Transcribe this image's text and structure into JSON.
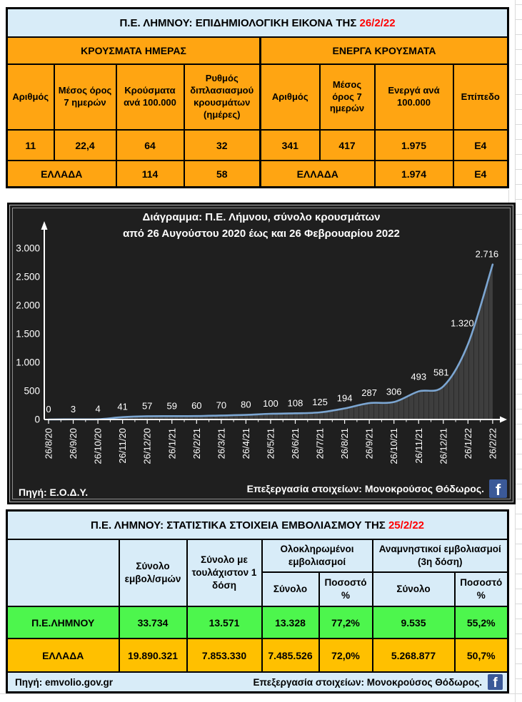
{
  "colors": {
    "orange": "#ffa512",
    "pale_blue": "#d8ecf8",
    "green_row": "#4df64d",
    "gold_row": "#ffc000",
    "date_red": "#ff0000",
    "facebook_blue": "#3b5998"
  },
  "epi_table": {
    "title": "Π.Ε. ΛΗΜΝΟΥ: ΕΠΙΔΗΜΙΟΛΟΓΙΚΗ ΕΙΚΟΝΑ ΤΗΣ",
    "title_date": "26/2/22",
    "groups": [
      "ΚΡΟΥΣΜΑΤΑ ΗΜΕΡΑΣ",
      "ΕΝΕΡΓΑ ΚΡΟΥΣΜΑΤΑ"
    ],
    "columns": [
      "Αριθμός",
      "Μέσος όρος 7 ημερών",
      "Κρούσματα ανά 100.000",
      "Ρυθμός διπλασιασμού κρουσμάτων (ημέρες)",
      "Αριθμός",
      "Μέσος όρος 7 ημερών",
      "Ενεργά ανά 100.000",
      "Επίπεδο"
    ],
    "region_row": [
      "11",
      "22,4",
      "64",
      "32",
      "341",
      "417",
      "1.975",
      "Ε4"
    ],
    "greece_row": [
      "ΕΛΛΑΔΑ",
      "114",
      "58",
      "ΕΛΛΑΔΑ",
      "1.974",
      "Ε4"
    ]
  },
  "chart_data": {
    "type": "area",
    "title_line1": "Διάγραμμα:  Π.Ε. Λήμνου, σύνολο κρουσμάτων",
    "title_line2": "από 26 Αυγούστου 2020 έως και 26 Φεβρουαρίου 2022",
    "categories": [
      "26/8/20",
      "26/9/20",
      "26/10/20",
      "26/11/20",
      "26/12/20",
      "26/1/21",
      "26/2/21",
      "26/3/21",
      "26/4/21",
      "26/5/21",
      "26/6/21",
      "26/7/21",
      "26/8/21",
      "26/9/21",
      "26/10/21",
      "26/11/21",
      "26/12/21",
      "26/1/22",
      "26/2/22"
    ],
    "values": [
      0,
      3,
      4,
      41,
      57,
      59,
      60,
      70,
      80,
      100,
      108,
      125,
      194,
      287,
      306,
      493,
      581,
      1320,
      2716
    ],
    "value_labels": [
      "0",
      "3",
      "4",
      "41",
      "57",
      "59",
      "60",
      "70",
      "80",
      "100",
      "108",
      "125",
      "194",
      "287",
      "306",
      "493",
      "581",
      "1.320",
      "2.716"
    ],
    "ylim": [
      0,
      3000
    ],
    "yticks": [
      0,
      500,
      1000,
      1500,
      2000,
      2500,
      3000
    ],
    "ytick_labels": [
      "0",
      "500",
      "1.000",
      "1.500",
      "2.000",
      "2.500",
      "3.000"
    ],
    "grid": false,
    "legend": "none",
    "colors": {
      "bg": "#1f1f1f",
      "line": "#7ca6d2",
      "area": "#3e3e3e",
      "hatch": "#272727",
      "text": "#ffffff"
    },
    "source_left": "Πηγή: Ε.Ο.Δ.Υ.",
    "credit_right": "Επεξεργασία  στοιχείων: Μονοκρούσος Θόδωρος."
  },
  "vax_table": {
    "title": "Π.Ε. ΛΗΜΝΟΥ: ΣΤΑΤΙΣΤΙΚΑ ΣΤΟΙΧΕΙΑ ΕΜΒΟΛΙΑΣΜΟΥ ΤΗΣ",
    "title_date": "25/2/22",
    "col_total": "Σύνολο εμβολ/σμών",
    "col_atleast1": "Σύνολο με τουλάχιστον 1 δόση",
    "group_completed": "Ολοκληρωμένοι εμβολιασμοί",
    "group_booster": "Αναμνηστικοί εμβολιασμοί (3η δόση)",
    "sub_total": "Σύνολο",
    "sub_pct": "Ποσοστό %",
    "rows": [
      {
        "name": "Π.Ε.ΛΗΜΝΟΥ",
        "total": "33.734",
        "atleast1": "13.571",
        "completed": "13.328",
        "completed_pct": "77,2%",
        "booster": "9.535",
        "booster_pct": "55,2%"
      },
      {
        "name": "ΕΛΛΑΔΑ",
        "total": "19.890.321",
        "atleast1": "7.853.330",
        "completed": "7.485.526",
        "completed_pct": "72,0%",
        "booster": "5.268.877",
        "booster_pct": "50,7%"
      }
    ],
    "source_left": "Πηγή: emvolio.gov.gr",
    "credit_right": "Επεξεργασία στοιχείων: Μονοκρούσος Θόδωρος."
  },
  "icons": {
    "facebook": "f"
  }
}
